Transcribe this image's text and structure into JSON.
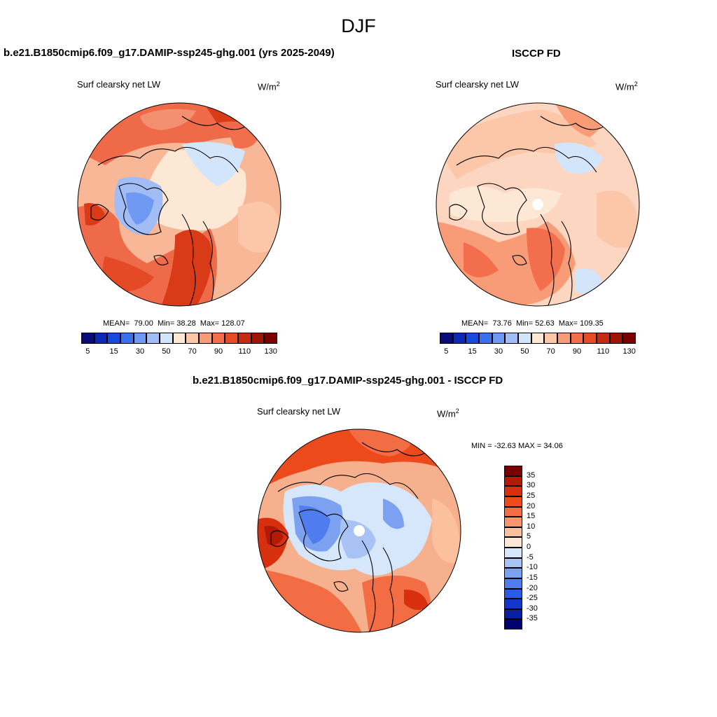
{
  "page": {
    "title": "DJF"
  },
  "panels": {
    "model": {
      "title": "b.e21.B1850cmip6.f09_g17.DAMIP-ssp245-ghg.001 (yrs 2025-2049)",
      "variable": "Surf clearsky net LW",
      "units_base": "W/m",
      "units_exp": "2",
      "stats": {
        "mean_label": "MEAN=",
        "mean": "79.00",
        "min_label": "Min=",
        "min": "38.28",
        "max_label": "Max=",
        "max": "128.07"
      }
    },
    "obs": {
      "title": "ISCCP FD",
      "variable": "Surf clearsky net LW",
      "units_base": "W/m",
      "units_exp": "2",
      "stats": {
        "mean_label": "MEAN=",
        "mean": "73.76",
        "min_label": "Min=",
        "min": "52.63",
        "max_label": "Max=",
        "max": "109.35"
      }
    },
    "diff": {
      "title": "b.e21.B1850cmip6.f09_g17.DAMIP-ssp245-ghg.001 - ISCCP FD",
      "variable": "Surf clearsky net LW",
      "units_base": "W/m",
      "units_exp": "2",
      "stats_text": "MIN = -32.63 MAX =  34.06"
    }
  },
  "colorbars": {
    "absolute": {
      "colors": [
        "#0a0a78",
        "#0c28b4",
        "#1848dc",
        "#3a6ff0",
        "#6e98f2",
        "#a2bdf5",
        "#d3e5fb",
        "#fde8d6",
        "#fcc6a8",
        "#f89c78",
        "#f36e4c",
        "#e94a26",
        "#c82a10",
        "#a01506",
        "#7a0000"
      ],
      "ticks": [
        "5",
        "15",
        "30",
        "50",
        "70",
        "90",
        "110",
        "130"
      ]
    },
    "diff": {
      "colors": [
        "#7a0000",
        "#b21a04",
        "#d8300e",
        "#ed4a1c",
        "#f26c44",
        "#f7966c",
        "#fbc09e",
        "#fde8d6",
        "#d6e6fb",
        "#a9c2f5",
        "#7da1f1",
        "#4f7df0",
        "#2a5ae8",
        "#1336cc",
        "#0a1ea2",
        "#00006e"
      ],
      "ticks": [
        "35",
        "30",
        "25",
        "20",
        "15",
        "10",
        "5",
        "0",
        "-5",
        "-10",
        "-15",
        "-20",
        "-25",
        "-30",
        "-35"
      ]
    }
  },
  "maps": {
    "model": {
      "base": "#f8b898"
    },
    "obs": {
      "base": "#fcd6c0"
    },
    "diff": {
      "base": "#f7b08e"
    }
  }
}
